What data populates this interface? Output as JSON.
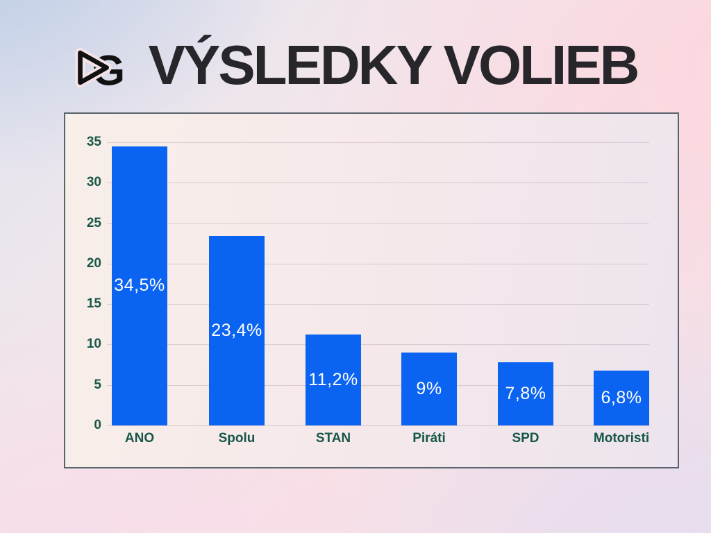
{
  "header": {
    "title": "VÝSLEDKY VOLIEB",
    "logo_letter": "G"
  },
  "chart_data": {
    "type": "bar",
    "title": "VÝSLEDKY VOLIEB",
    "categories": [
      "ANO",
      "Spolu",
      "STAN",
      "Piráti",
      "SPD",
      "Motoristi"
    ],
    "values": [
      34.5,
      23.4,
      11.2,
      9,
      7.8,
      6.8
    ],
    "bar_labels": [
      "34,5%",
      "23,4%",
      "11,2%",
      "9%",
      "7,8%",
      "6,8%"
    ],
    "xlabel": "",
    "ylabel": "",
    "ylim": [
      0,
      35
    ],
    "yticks": [
      0,
      5,
      10,
      15,
      20,
      25,
      30,
      35
    ],
    "ytick_labels": [
      "0",
      "5",
      "10",
      "15",
      "20",
      "25",
      "30",
      "35"
    ],
    "grid": "horizontal",
    "legend": "none",
    "colors": {
      "bar": "#0b63f2",
      "value_label": "#ffffff",
      "axis_text": "#175649",
      "gridline": "rgba(158,138,150,0.32)",
      "panel_border": "#59636c",
      "title_text": "#26262b"
    }
  }
}
